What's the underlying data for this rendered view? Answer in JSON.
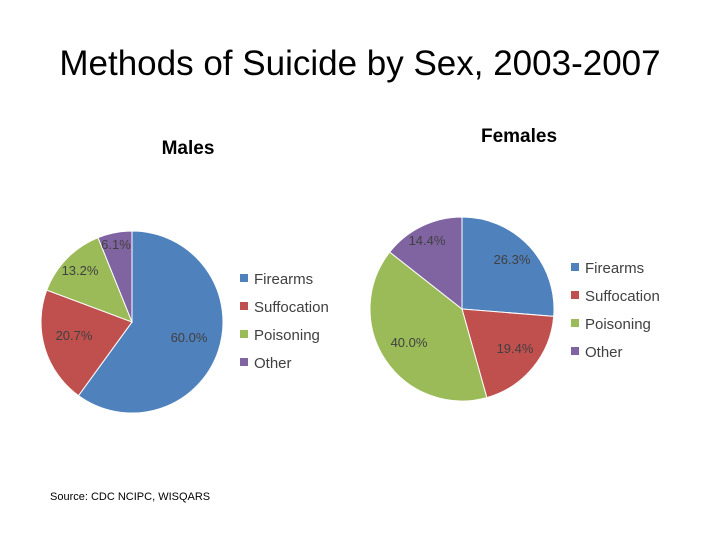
{
  "title": "Methods of Suicide by Sex, 2003-2007",
  "source": "Source: CDC NCIPC, WISQARS",
  "colors": {
    "Firearms": "#4f81bd",
    "Suffocation": "#c0504d",
    "Poisoning": "#9bbb59",
    "Other": "#8064a2"
  },
  "chart_data": [
    {
      "type": "pie",
      "title": "Males",
      "categories": [
        "Firearms",
        "Suffocation",
        "Poisoning",
        "Other"
      ],
      "values": [
        60.0,
        20.7,
        13.2,
        6.1
      ],
      "labels": [
        "60.0%",
        "20.7%",
        "13.2%",
        "6.1%"
      ],
      "legend": [
        "Firearms",
        "Suffocation",
        "Poisoning",
        "Other"
      ],
      "legend_position": "right"
    },
    {
      "type": "pie",
      "title": "Females",
      "categories": [
        "Firearms",
        "Suffocation",
        "Poisoning",
        "Other"
      ],
      "values": [
        26.3,
        19.4,
        40.0,
        14.4
      ],
      "labels": [
        "26.3%",
        "19.4%",
        "40.0%",
        "14.4%"
      ],
      "legend": [
        "Firearms",
        "Suffocation",
        "Poisoning",
        "Other"
      ],
      "legend_position": "right"
    }
  ]
}
